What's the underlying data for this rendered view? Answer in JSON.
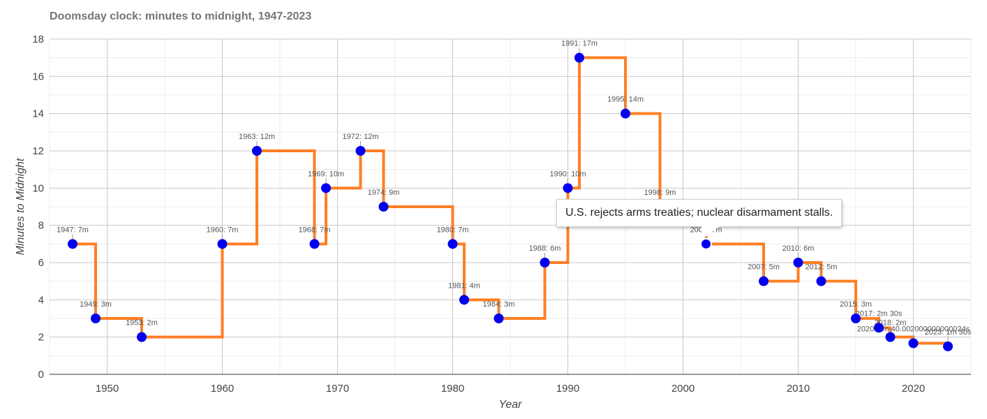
{
  "title": "Doomsday clock: minutes to midnight, 1947-2023",
  "tooltip": {
    "text": "U.S. rejects arms treaties; nuclear disarmament stalls.",
    "year": 2002
  },
  "colors": {
    "line": "#FF7F24",
    "point": "#0000EE",
    "grid_major": "#c8c8c8",
    "grid_minor": "#ececec",
    "axis": "#333333"
  },
  "chart_data": {
    "type": "line",
    "step": true,
    "xlabel": "Year",
    "ylabel": "Minutes to Midnight",
    "xlim": [
      1945,
      2025
    ],
    "ylim": [
      0,
      18
    ],
    "x_ticks": [
      1950,
      1960,
      1970,
      1980,
      1990,
      2000,
      2010,
      2020
    ],
    "y_ticks": [
      0,
      2,
      4,
      6,
      8,
      10,
      12,
      14,
      16,
      18
    ],
    "grid": true,
    "series": [
      {
        "points": [
          {
            "year": 1947,
            "minutes": 7,
            "label": "1947: 7m"
          },
          {
            "year": 1949,
            "minutes": 3,
            "label": "1949: 3m"
          },
          {
            "year": 1953,
            "minutes": 2,
            "label": "1953: 2m"
          },
          {
            "year": 1960,
            "minutes": 7,
            "label": "1960: 7m"
          },
          {
            "year": 1963,
            "minutes": 12,
            "label": "1963: 12m"
          },
          {
            "year": 1968,
            "minutes": 7,
            "label": "1968: 7m"
          },
          {
            "year": 1969,
            "minutes": 10,
            "label": "1969: 10m"
          },
          {
            "year": 1972,
            "minutes": 12,
            "label": "1972: 12m"
          },
          {
            "year": 1974,
            "minutes": 9,
            "label": "1974: 9m"
          },
          {
            "year": 1980,
            "minutes": 7,
            "label": "1980: 7m"
          },
          {
            "year": 1981,
            "minutes": 4,
            "label": "1981: 4m"
          },
          {
            "year": 1984,
            "minutes": 3,
            "label": "1984: 3m"
          },
          {
            "year": 1988,
            "minutes": 6,
            "label": "1988: 6m"
          },
          {
            "year": 1990,
            "minutes": 10,
            "label": "1990: 10m"
          },
          {
            "year": 1991,
            "minutes": 17,
            "label": "1991: 17m"
          },
          {
            "year": 1995,
            "minutes": 14,
            "label": "1995: 14m"
          },
          {
            "year": 1998,
            "minutes": 9,
            "label": "1998: 9m"
          },
          {
            "year": 2002,
            "minutes": 7,
            "label": "2002: 7m"
          },
          {
            "year": 2007,
            "minutes": 5,
            "label": "2007: 5m"
          },
          {
            "year": 2010,
            "minutes": 6,
            "label": "2010: 6m"
          },
          {
            "year": 2012,
            "minutes": 5,
            "label": "2012: 5m"
          },
          {
            "year": 2015,
            "minutes": 3,
            "label": "2015: 3m"
          },
          {
            "year": 2017,
            "minutes": 2.5,
            "label": "2017: 2m 30s"
          },
          {
            "year": 2018,
            "minutes": 2,
            "label": "2018: 2m"
          },
          {
            "year": 2020,
            "minutes": 1.667,
            "label": "2020: 1m 40.002000000000024s"
          },
          {
            "year": 2023,
            "minutes": 1.5,
            "label": "2023: 1m 30s"
          }
        ]
      }
    ]
  }
}
